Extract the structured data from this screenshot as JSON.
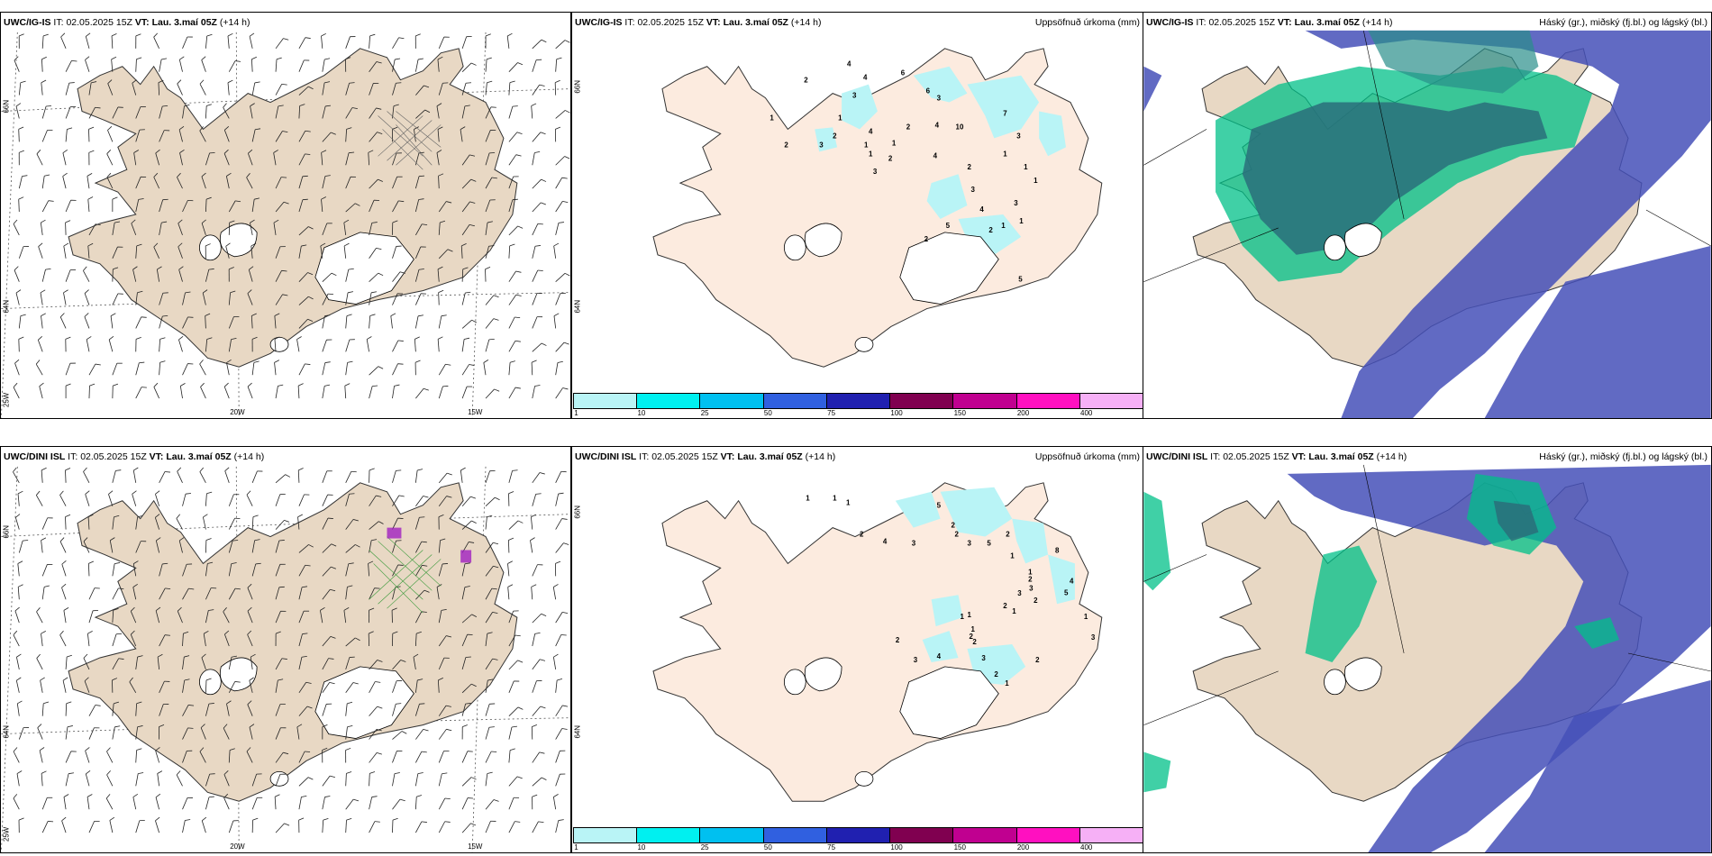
{
  "rows": [
    {
      "model": "UWC/IG-IS",
      "it_label": "IT:",
      "it_value": "02.05.2025 15Z",
      "vt_label": "VT: Lau. 3.maí 05Z",
      "lead": "(+14 h)"
    },
    {
      "model": "UWC/DINI ISL",
      "it_label": "IT:",
      "it_value": "02.05.2025 15Z",
      "vt_label": "VT: Lau. 3.maí 05Z",
      "lead": "(+14 h)"
    }
  ],
  "precip_title": "Uppsöfnuð úrkoma (mm)",
  "cloud_title": "Háský (gr.), miðský (fj.bl.) og lágský (bl.)",
  "grid_labels": {
    "lat66": "66N",
    "lat64": "64N",
    "lon20": "20W",
    "lon15": "15W",
    "lon25": "25W"
  },
  "colorbar": {
    "colors": [
      "#b9f4f6",
      "#00f0f0",
      "#00c0f0",
      "#3060e0",
      "#2020b0",
      "#800050",
      "#c00090",
      "#ff10c0",
      "#f6b0f6"
    ],
    "ticks": [
      "1",
      "10",
      "25",
      "50",
      "75",
      "100",
      "150",
      "200",
      "400"
    ]
  },
  "colors": {
    "land": "#e8d8c4",
    "land_precip": "#fcebdf",
    "precip_light": "#b9f4f6",
    "high_cloud": "#4550b8",
    "mid_cloud": "#00c088",
    "low_cloud": "#2a6f7a"
  },
  "precip_values_top": [
    "2",
    "4",
    "3",
    "4",
    "6",
    "6",
    "3",
    "4",
    "1",
    "1",
    "2",
    "3",
    "2",
    "4",
    "1",
    "1",
    "1",
    "2",
    "3",
    "2",
    "4",
    "10",
    "7",
    "3",
    "1",
    "1",
    "2",
    "3",
    "4",
    "1",
    "1",
    "5",
    "1",
    "3",
    "2",
    "5",
    "2"
  ],
  "precip_values_bottom": [
    "1",
    "1",
    "1",
    "2",
    "4",
    "3",
    "5",
    "2",
    "2",
    "3",
    "5",
    "2",
    "1",
    "1",
    "2",
    "3",
    "8",
    "4",
    "2",
    "1",
    "1",
    "1",
    "2",
    "3",
    "2",
    "1",
    "1",
    "3",
    "2",
    "5",
    "1",
    "3",
    "2",
    "2",
    "4",
    "3",
    "2"
  ]
}
